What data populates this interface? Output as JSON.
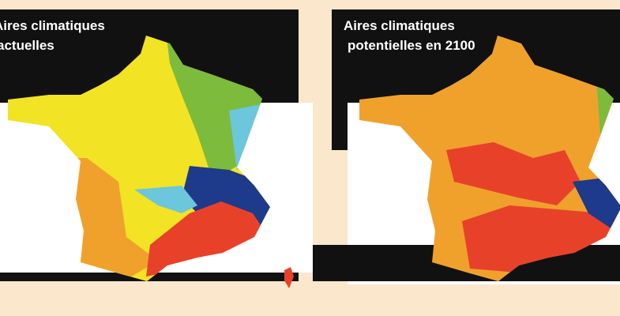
{
  "left_panel": {
    "title_lines": [
      "Aires climatiques",
      "actuelles"
    ]
  },
  "right_panel": {
    "title_lines": [
      "Aires climatiques",
      "potentielles en 2100"
    ]
  }
}
